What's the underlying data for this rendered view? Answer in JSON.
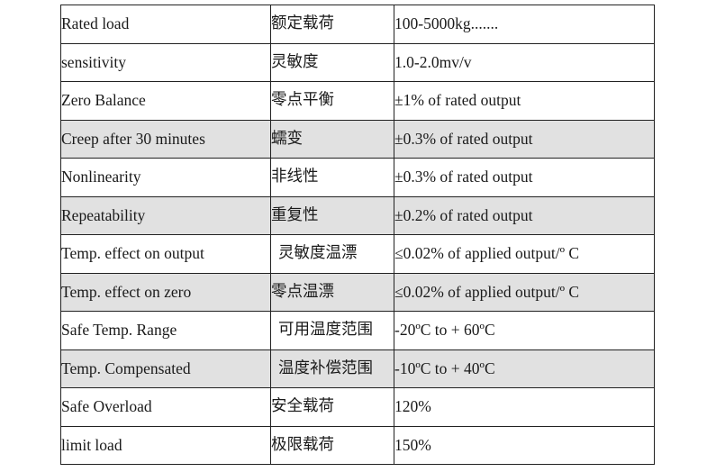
{
  "rows": [
    {
      "en": "Rated load",
      "zh": "额定载荷",
      "value": "100-5000kg.......",
      "shaded": false,
      "zh_wide": false
    },
    {
      "en": "sensitivity",
      "zh": "灵敏度",
      "value": "1.0-2.0mv/v",
      "shaded": false,
      "zh_wide": false
    },
    {
      "en": "Zero Balance",
      "zh": "零点平衡",
      "value": "±1% of rated output",
      "shaded": false,
      "zh_wide": false
    },
    {
      "en": "Creep after 30 minutes",
      "zh": "蠕变",
      "value": "±0.3% of rated output",
      "shaded": true,
      "zh_wide": false
    },
    {
      "en": "Nonlinearity",
      "zh": "非线性",
      "value": "±0.3% of rated output",
      "shaded": false,
      "zh_wide": false
    },
    {
      "en": "Repeatability",
      "zh": "重复性",
      "value": "±0.2% of rated output",
      "shaded": true,
      "zh_wide": false
    },
    {
      "en": "Temp. effect on output",
      "zh": "灵敏度温漂",
      "value": "≤0.02% of applied output/º C",
      "shaded": false,
      "zh_wide": true
    },
    {
      "en": "Temp. effect on zero",
      "zh": "零点温漂",
      "value": "≤0.02% of applied output/º C",
      "shaded": true,
      "zh_wide": false
    },
    {
      "en": "Safe Temp. Range",
      "zh": "可用温度范围",
      "value": "-20ºC to + 60ºC",
      "shaded": false,
      "zh_wide": true
    },
    {
      "en": "Temp. Compensated",
      "zh": "温度补偿范围",
      "value": "-10ºC to + 40ºC",
      "shaded": true,
      "zh_wide": true
    },
    {
      "en": "Safe Overload",
      "zh": "安全载荷",
      "value": "120%",
      "shaded": false,
      "zh_wide": false
    },
    {
      "en": "limit load",
      "zh": "极限载荷",
      "value": "150%",
      "shaded": false,
      "zh_wide": false
    }
  ]
}
